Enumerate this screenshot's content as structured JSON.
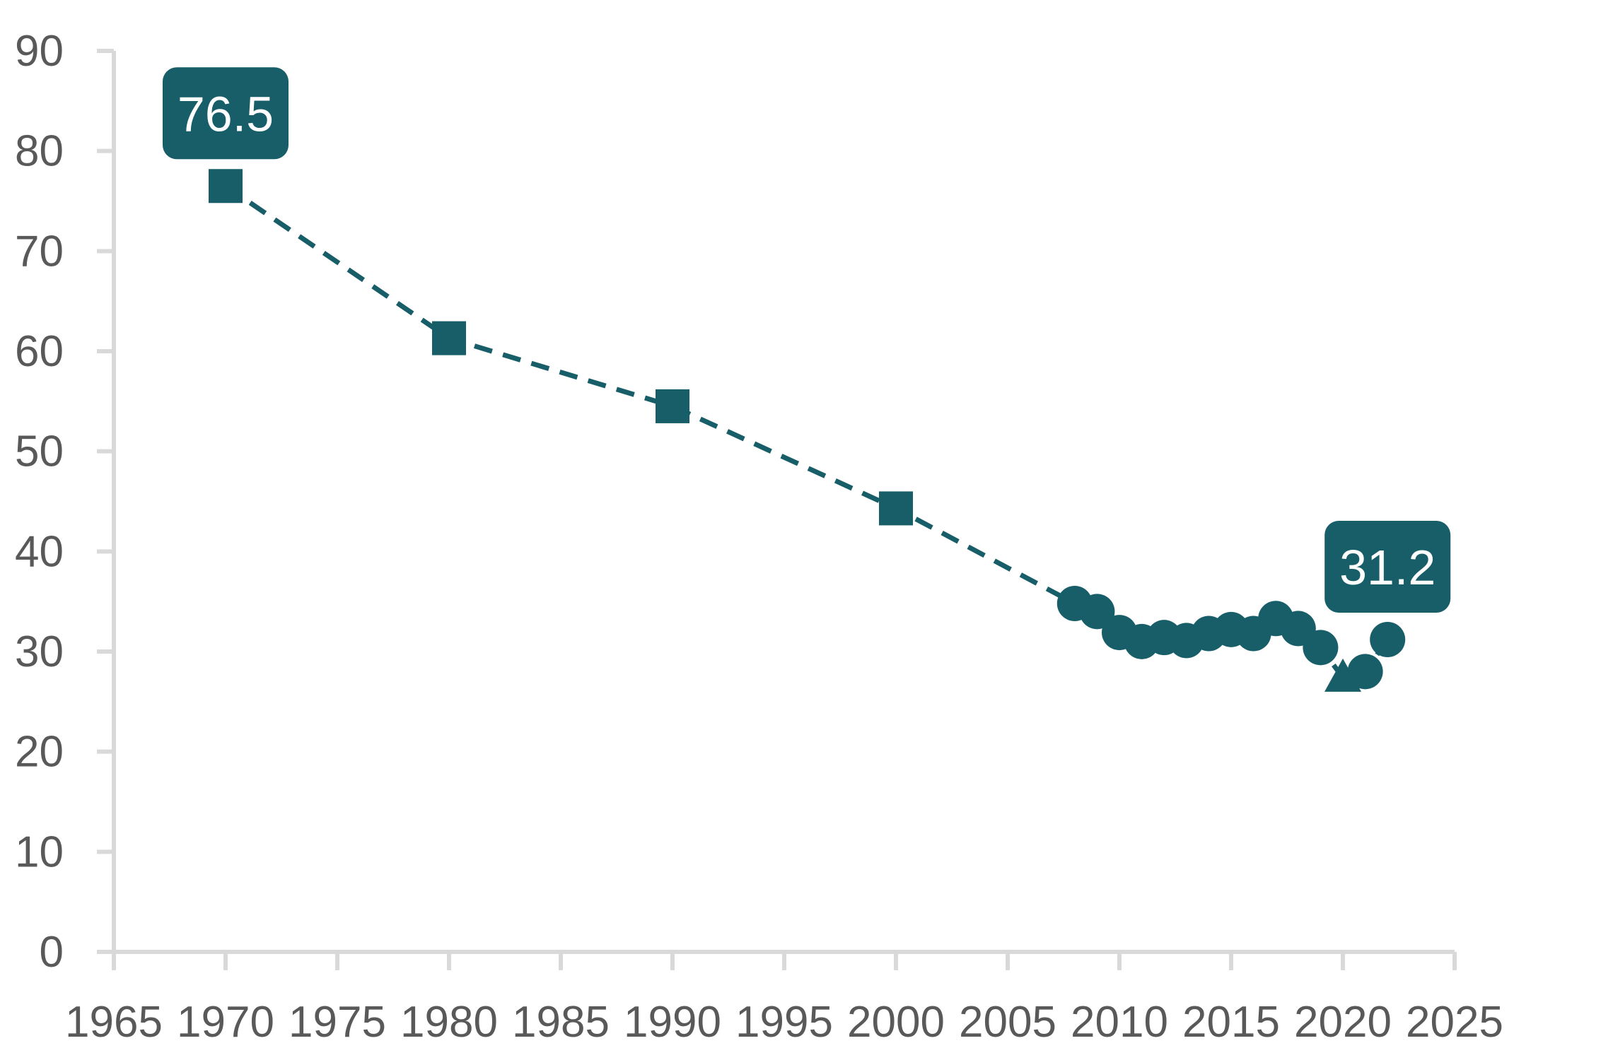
{
  "chart_data": {
    "type": "line",
    "title": "",
    "xlabel": "",
    "ylabel": "",
    "xlim": [
      1965,
      2025
    ],
    "ylim": [
      0,
      90
    ],
    "x_ticks": [
      1965,
      1970,
      1975,
      1980,
      1985,
      1990,
      1995,
      2000,
      2005,
      2010,
      2015,
      2020,
      2025
    ],
    "y_ticks": [
      0,
      10,
      20,
      30,
      40,
      50,
      60,
      70,
      80,
      90
    ],
    "grid": false,
    "legend": "none",
    "color": "#175e69",
    "series": [
      {
        "line_style": "dashed",
        "points": [
          {
            "x": 1970,
            "y": 76.5,
            "marker": "square"
          },
          {
            "x": 1980,
            "y": 61.3,
            "marker": "square"
          },
          {
            "x": 1990,
            "y": 54.5,
            "marker": "square"
          },
          {
            "x": 2000,
            "y": 44.3,
            "marker": "square"
          },
          {
            "x": 2008,
            "y": 34.8,
            "marker": "circle"
          },
          {
            "x": 2009,
            "y": 34.0,
            "marker": "circle"
          },
          {
            "x": 2010,
            "y": 31.9,
            "marker": "circle"
          },
          {
            "x": 2011,
            "y": 31.0,
            "marker": "circle"
          },
          {
            "x": 2012,
            "y": 31.4,
            "marker": "circle"
          },
          {
            "x": 2013,
            "y": 31.1,
            "marker": "circle"
          },
          {
            "x": 2014,
            "y": 31.8,
            "marker": "circle"
          },
          {
            "x": 2015,
            "y": 32.2,
            "marker": "circle"
          },
          {
            "x": 2016,
            "y": 31.8,
            "marker": "circle"
          },
          {
            "x": 2017,
            "y": 33.3,
            "marker": "circle"
          },
          {
            "x": 2018,
            "y": 32.3,
            "marker": "circle"
          },
          {
            "x": 2019,
            "y": 30.4,
            "marker": "circle"
          },
          {
            "x": 2020,
            "y": 27.4,
            "marker": "triangle"
          },
          {
            "x": 2021,
            "y": 28.0,
            "marker": "circle"
          },
          {
            "x": 2022,
            "y": 31.2,
            "marker": "circle"
          }
        ]
      }
    ],
    "annotations": [
      {
        "x": 1970,
        "y": 76.5,
        "text": "76.5"
      },
      {
        "x": 2022,
        "y": 31.2,
        "text": "31.2"
      }
    ]
  }
}
